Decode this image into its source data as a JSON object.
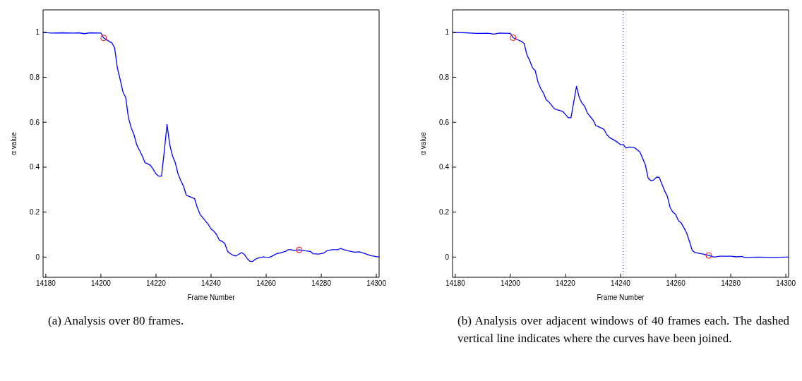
{
  "chart_data": [
    {
      "type": "line",
      "xlabel": "Frame Number",
      "ylabel": "α value",
      "xlim": [
        14179,
        14301
      ],
      "xticks": [
        14180,
        14200,
        14220,
        14240,
        14260,
        14280,
        14300
      ],
      "ylim": [
        -0.09,
        1.1
      ],
      "yticks": [
        0,
        0.2,
        0.4,
        0.6,
        0.8,
        1
      ],
      "annotations": [
        "(a) Analysis over 80 frames."
      ],
      "series": [
        {
          "color": "#0000ff",
          "marker": "none",
          "x": [
            14179,
            14182,
            14186,
            14190,
            14192,
            14194,
            14196,
            14200,
            14201,
            14203,
            14204,
            14205,
            14206,
            14207,
            14208,
            14209,
            14210,
            14211,
            14212,
            14213,
            14214,
            14215,
            14216,
            14217,
            14218,
            14219,
            14220,
            14221,
            14222,
            14223,
            14224,
            14225,
            14226,
            14227,
            14228,
            14229,
            14230,
            14231,
            14232,
            14233,
            14234,
            14235,
            14236,
            14237,
            14238,
            14239,
            14240,
            14241,
            14242,
            14243,
            14244,
            14245,
            14246,
            14247,
            14248,
            14249,
            14250,
            14251,
            14252,
            14253,
            14254,
            14255,
            14256,
            14257,
            14258,
            14259,
            14260,
            14261,
            14262,
            14263,
            14264,
            14265,
            14266,
            14267,
            14268,
            14269,
            14270,
            14272,
            14274,
            14276,
            14277,
            14279,
            14281,
            14282,
            14284,
            14286,
            14287,
            14289,
            14292,
            14294,
            14296,
            14298,
            14301
          ],
          "values": [
            1.0,
            0.997,
            0.998,
            0.997,
            0.998,
            0.994,
            0.998,
            0.997,
            0.975,
            0.96,
            0.953,
            0.93,
            0.84,
            0.79,
            0.735,
            0.71,
            0.62,
            0.575,
            0.545,
            0.5,
            0.475,
            0.45,
            0.42,
            0.415,
            0.408,
            0.39,
            0.37,
            0.36,
            0.36,
            0.47,
            0.59,
            0.5,
            0.45,
            0.42,
            0.37,
            0.34,
            0.315,
            0.275,
            0.27,
            0.265,
            0.26,
            0.22,
            0.19,
            0.175,
            0.16,
            0.145,
            0.125,
            0.115,
            0.1,
            0.075,
            0.07,
            0.06,
            0.025,
            0.015,
            0.008,
            0.005,
            0.012,
            0.02,
            0.013,
            -0.005,
            -0.018,
            -0.02,
            -0.01,
            -0.005,
            -0.002,
            0.001,
            -0.001,
            -0.002,
            0.003,
            0.01,
            0.016,
            0.018,
            0.022,
            0.025,
            0.033,
            0.033,
            0.03,
            0.032,
            0.028,
            0.025,
            0.015,
            0.013,
            0.018,
            0.028,
            0.033,
            0.033,
            0.038,
            0.03,
            0.022,
            0.023,
            0.015,
            0.006,
            0.0
          ]
        },
        {
          "type": "scatter",
          "color": "#ff0000",
          "marker": "circle",
          "x": [
            14201,
            14272
          ],
          "values": [
            0.975,
            0.032
          ]
        }
      ]
    },
    {
      "type": "line",
      "xlabel": "Frame Number",
      "ylabel": "α value",
      "xlim": [
        14179,
        14301
      ],
      "xticks": [
        14180,
        14200,
        14220,
        14240,
        14260,
        14280,
        14300
      ],
      "ylim": [
        -0.09,
        1.1
      ],
      "yticks": [
        0,
        0.2,
        0.4,
        0.6,
        0.8,
        1
      ],
      "annotations": [
        "(b) Analysis over adjacent windows of 40 frames each. The dashed vertical line indicates where the curves have been joined."
      ],
      "ref_lines": [
        {
          "axis": "x",
          "value": 14241,
          "color": "#0000ff",
          "line_style": "dotted"
        }
      ],
      "series": [
        {
          "color": "#0000ff",
          "marker": "none",
          "x": [
            14179,
            14184,
            14188,
            14192,
            14194,
            14196,
            14200,
            14201,
            14203,
            14204,
            14205,
            14206,
            14207,
            14208,
            14209,
            14210,
            14211,
            14212,
            14213,
            14214,
            14215,
            14216,
            14217,
            14219,
            14220,
            14221,
            14222,
            14223,
            14224,
            14225,
            14226,
            14227,
            14228,
            14229,
            14230,
            14231,
            14232,
            14234,
            14235,
            14236,
            14237,
            14238,
            14239,
            14240,
            14241,
            14242,
            14243,
            14245,
            14247,
            14248,
            14249,
            14250,
            14251,
            14252,
            14253,
            14254,
            14255,
            14256,
            14257,
            14258,
            14259,
            14260,
            14261,
            14262,
            14263,
            14264,
            14265,
            14266,
            14267,
            14270,
            14272,
            14274,
            14276,
            14280,
            14282,
            14284,
            14285,
            14290,
            14295,
            14300,
            14301
          ],
          "values": [
            1.0,
            0.998,
            0.995,
            0.996,
            0.992,
            0.997,
            0.995,
            0.976,
            0.965,
            0.96,
            0.95,
            0.9,
            0.875,
            0.843,
            0.83,
            0.78,
            0.75,
            0.73,
            0.7,
            0.69,
            0.675,
            0.66,
            0.655,
            0.648,
            0.635,
            0.62,
            0.62,
            0.69,
            0.76,
            0.71,
            0.685,
            0.67,
            0.64,
            0.625,
            0.61,
            0.585,
            0.58,
            0.568,
            0.545,
            0.532,
            0.525,
            0.518,
            0.51,
            0.5,
            0.5,
            0.485,
            0.49,
            0.488,
            0.468,
            0.44,
            0.41,
            0.352,
            0.34,
            0.343,
            0.355,
            0.355,
            0.325,
            0.295,
            0.27,
            0.22,
            0.2,
            0.19,
            0.162,
            0.152,
            0.13,
            0.107,
            0.07,
            0.03,
            0.02,
            0.013,
            0.007,
            0.0,
            0.004,
            0.004,
            0.001,
            0.003,
            -0.002,
            0.0,
            -0.002,
            0.0,
            0.0
          ]
        },
        {
          "type": "scatter",
          "color": "#ff0000",
          "marker": "circle",
          "x": [
            14201,
            14272
          ],
          "values": [
            0.976,
            0.007
          ]
        }
      ]
    }
  ]
}
